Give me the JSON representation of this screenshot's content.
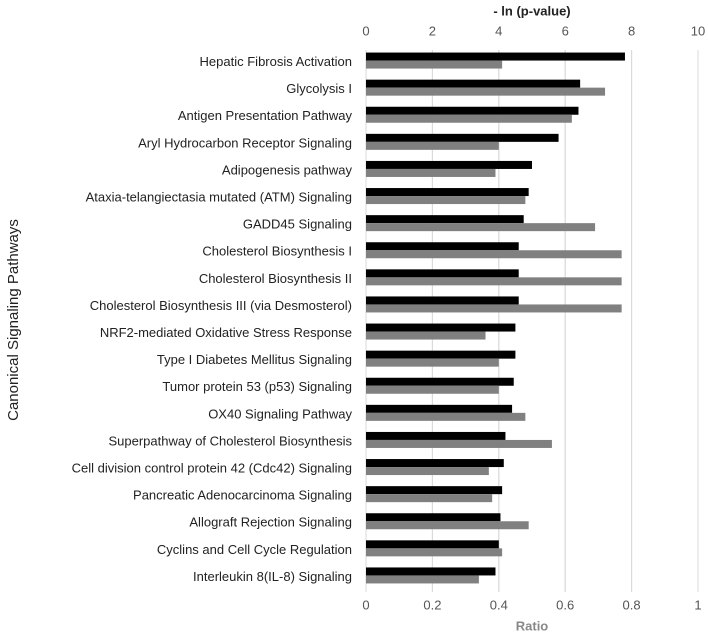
{
  "chart_data": {
    "type": "bar",
    "orientation": "horizontal",
    "x2label": "- ln (p-value)",
    "xlabel": "Ratio",
    "ylabel": "Canonical Signaling Pathways",
    "categories": [
      "Hepatic Fibrosis Activation",
      "Glycolysis I",
      "Antigen Presentation Pathway",
      "Aryl Hydrocarbon Receptor Signaling",
      "Adipogenesis pathway",
      "Ataxia-telangiectasia mutated (ATM) Signaling",
      "GADD45 Signaling",
      "Cholesterol Biosynthesis I",
      "Cholesterol Biosynthesis II",
      "Cholesterol Biosynthesis III (via Desmosterol)",
      "NRF2-mediated Oxidative Stress Response",
      "Type I Diabetes Mellitus Signaling",
      "Tumor protein 53 (p53) Signaling",
      "OX40 Signaling Pathway",
      "Superpathway of Cholesterol Biosynthesis",
      "Cell division control protein 42 (Cdc42) Signaling",
      "Pancreatic Adenocarcinoma Signaling",
      "Allograft Rejection Signaling",
      "Cyclins and Cell Cycle Regulation",
      "Interleukin 8(IL-8) Signaling"
    ],
    "series": [
      {
        "color": "#000000",
        "axis": "x2",
        "values": [
          7.8,
          6.45,
          6.4,
          5.8,
          5.0,
          4.9,
          4.75,
          4.6,
          4.6,
          4.6,
          4.5,
          4.5,
          4.45,
          4.4,
          4.2,
          4.15,
          4.1,
          4.05,
          4.0,
          3.9
        ]
      },
      {
        "color": "#808080",
        "values": [
          0.41,
          0.72,
          0.62,
          0.4,
          0.39,
          0.48,
          0.69,
          0.77,
          0.77,
          0.77,
          0.36,
          0.4,
          0.4,
          0.48,
          0.56,
          0.37,
          0.38,
          0.49,
          0.41,
          0.34
        ]
      }
    ],
    "x2lim": [
      0,
      10
    ],
    "x2ticks": [
      0,
      2,
      4,
      6,
      8,
      10
    ],
    "xlim": [
      0,
      1
    ],
    "xticks": [
      0,
      0.2,
      0.4,
      0.6,
      0.8,
      1
    ],
    "grid": true
  }
}
